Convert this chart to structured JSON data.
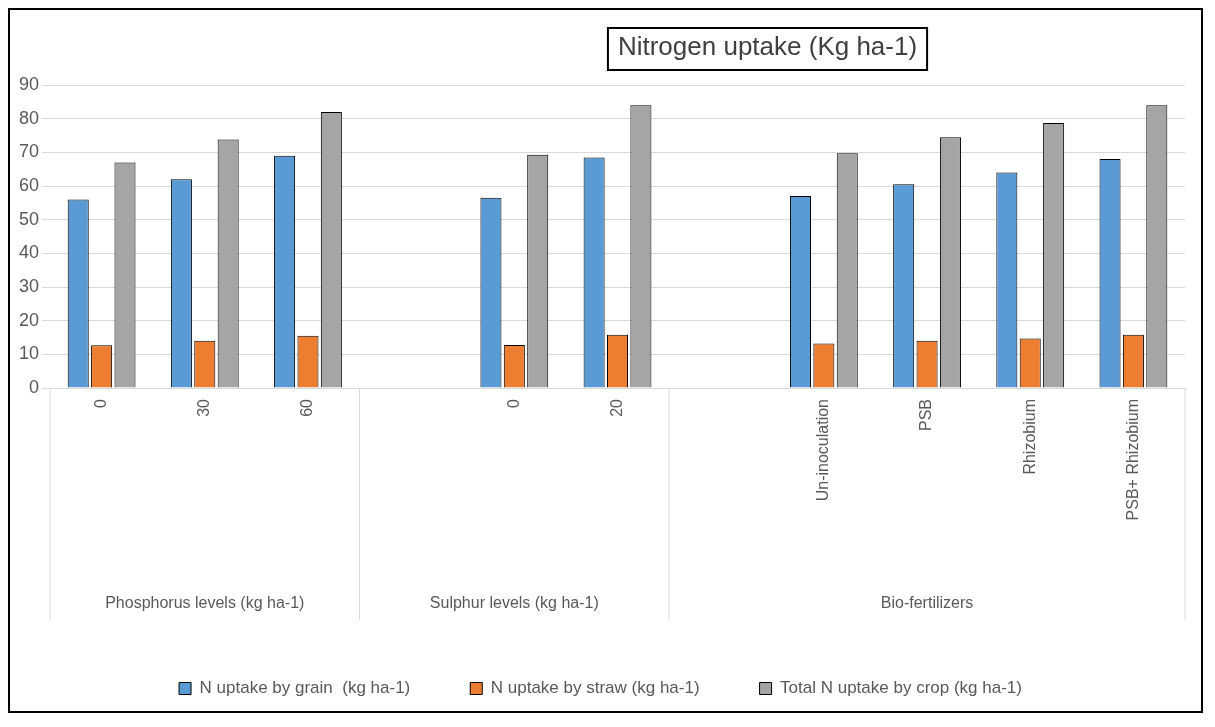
{
  "chart_data": {
    "type": "bar",
    "title": "Nitrogen uptake (Kg ha-1)",
    "categories": [
      "0",
      "30",
      "60",
      null,
      "0",
      "20",
      null,
      "Un-inoculation",
      "PSB",
      "Rhizobium",
      "PSB+ Rhizobium"
    ],
    "series": [
      {
        "name": "N uptake by grain  (kg ha-1)",
        "color": "#5b9bd5",
        "values": [
          56,
          62,
          69,
          null,
          56.5,
          68.5,
          null,
          57,
          60.5,
          64,
          68
        ]
      },
      {
        "name": "N uptake by straw (kg ha-1)",
        "color": "#ed7d31",
        "values": [
          12.7,
          14,
          15.5,
          null,
          12.8,
          15.8,
          null,
          13.2,
          14,
          14.7,
          15.8
        ]
      },
      {
        "name": "Total N uptake by crop (kg ha-1)",
        "color": "#a5a5a5",
        "values": [
          67,
          73.8,
          82,
          null,
          69.3,
          84,
          null,
          69.7,
          74.5,
          78.7,
          84
        ]
      }
    ],
    "annotations": [
      "Phosphorus levels (kg ha-1)",
      "Sulphur levels (kg ha-1)",
      "Bio-fertilizers"
    ],
    "ylim": [
      0,
      90
    ],
    "yticks": [
      0,
      10,
      20,
      30,
      40,
      50,
      60,
      70,
      80,
      90
    ],
    "grid": "y",
    "legend": "bottom"
  }
}
